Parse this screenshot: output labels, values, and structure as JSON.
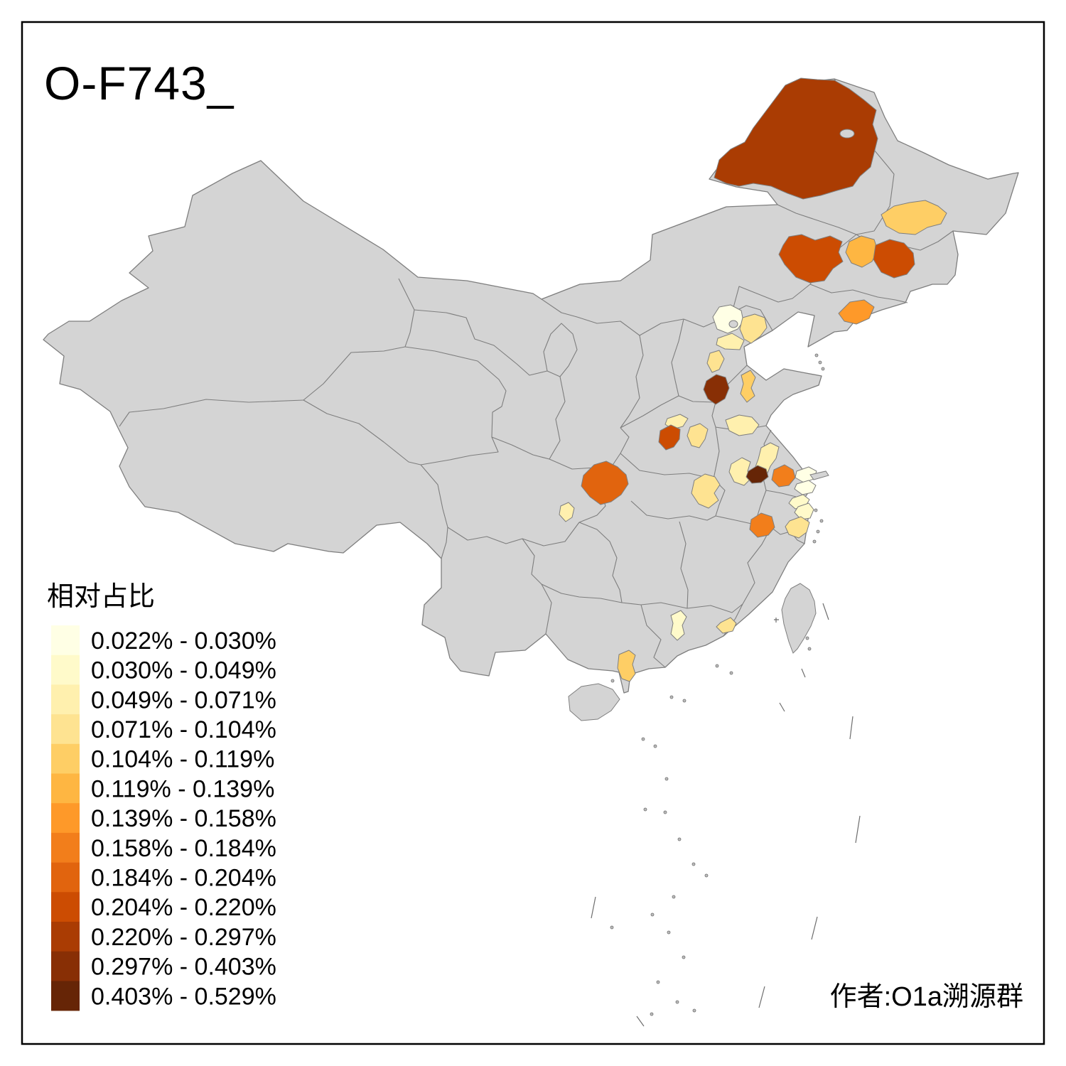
{
  "header": {
    "title": "O-F743_"
  },
  "legend": {
    "title": "相对占比",
    "items": [
      {
        "range": "0.022% - 0.030%",
        "color": "#FFFFE5"
      },
      {
        "range": "0.030% - 0.049%",
        "color": "#FFFACA"
      },
      {
        "range": "0.049% - 0.071%",
        "color": "#FFF0AE"
      },
      {
        "range": "0.071% - 0.104%",
        "color": "#FEE391"
      },
      {
        "range": "0.104% - 0.119%",
        "color": "#FECE65"
      },
      {
        "range": "0.119% - 0.139%",
        "color": "#FEB642"
      },
      {
        "range": "0.139% - 0.158%",
        "color": "#FE9929"
      },
      {
        "range": "0.158% - 0.184%",
        "color": "#F27E1B"
      },
      {
        "range": "0.184% - 0.204%",
        "color": "#E1640E"
      },
      {
        "range": "0.204% - 0.220%",
        "color": "#CC4C02"
      },
      {
        "range": "0.220% - 0.297%",
        "color": "#AA3C03"
      },
      {
        "range": "0.297% - 0.403%",
        "color": "#882F05"
      },
      {
        "range": "0.403% - 0.529%",
        "color": "#662506"
      }
    ]
  },
  "attribution": {
    "text": "作者:O1a溯源群"
  },
  "chart_data": {
    "type": "choropleth-map",
    "title": "O-F743_",
    "legend_title": "相对占比",
    "legend_position": "bottom-left",
    "value_unit": "percent relative share",
    "classes": [
      "0.022% - 0.030%",
      "0.030% - 0.049%",
      "0.049% - 0.071%",
      "0.071% - 0.104%",
      "0.104% - 0.119%",
      "0.119% - 0.139%",
      "0.139% - 0.158%",
      "0.158% - 0.184%",
      "0.184% - 0.204%",
      "0.204% - 0.220%",
      "0.220% - 0.297%",
      "0.297% - 0.403%",
      "0.403% - 0.529%"
    ],
    "palette": [
      "#FFFFE5",
      "#FFFACA",
      "#FFF0AE",
      "#FEE391",
      "#FECE65",
      "#FEB642",
      "#FE9929",
      "#F27E1B",
      "#E1640E",
      "#CC4C02",
      "#AA3C03",
      "#882F05",
      "#662506"
    ]
  },
  "map": {
    "land_color": "#D4D4D4",
    "border_color": "#7E7E7E",
    "background_color": "#FFFFFF",
    "frame_color": "#000000",
    "regions": [
      {
        "id": "r1",
        "color": "#AA3C03"
      },
      {
        "id": "r2",
        "color": "#CC4C02"
      },
      {
        "id": "r3",
        "color": "#FECE65"
      },
      {
        "id": "r4",
        "color": "#FEB642"
      },
      {
        "id": "r5",
        "color": "#CC4C02"
      },
      {
        "id": "r6",
        "color": "#FE9929"
      },
      {
        "id": "r7",
        "color": "#FFFFE5"
      },
      {
        "id": "r8",
        "color": "#FEE391"
      },
      {
        "id": "r9",
        "color": "#FFF0AE"
      },
      {
        "id": "r10",
        "color": "#FEE391"
      },
      {
        "id": "r11",
        "color": "#882F05"
      },
      {
        "id": "r12",
        "color": "#FECE65"
      },
      {
        "id": "r13",
        "color": "#FFF0AE"
      },
      {
        "id": "r14",
        "color": "#CC4C02"
      },
      {
        "id": "r15",
        "color": "#FEE391"
      },
      {
        "id": "r16",
        "color": "#FFF0AE"
      },
      {
        "id": "r17",
        "color": "#E1640E"
      },
      {
        "id": "r18",
        "color": "#FFF0AE"
      },
      {
        "id": "r19",
        "color": "#FEE391"
      },
      {
        "id": "r20",
        "color": "#FFF0AE"
      },
      {
        "id": "r21",
        "color": "#FFF0AE"
      },
      {
        "id": "r22",
        "color": "#662506"
      },
      {
        "id": "r23",
        "color": "#F27E1B"
      },
      {
        "id": "r24",
        "color": "#FFFFE5"
      },
      {
        "id": "r25",
        "color": "#FFFFE5"
      },
      {
        "id": "r26",
        "color": "#FFFACA"
      },
      {
        "id": "r27",
        "color": "#FFFACA"
      },
      {
        "id": "r28",
        "color": "#FEE391"
      },
      {
        "id": "r29",
        "color": "#F27E1B"
      },
      {
        "id": "r30",
        "color": "#FFFACA"
      },
      {
        "id": "r31",
        "color": "#FEE391"
      },
      {
        "id": "r32",
        "color": "#FECE65"
      }
    ]
  }
}
